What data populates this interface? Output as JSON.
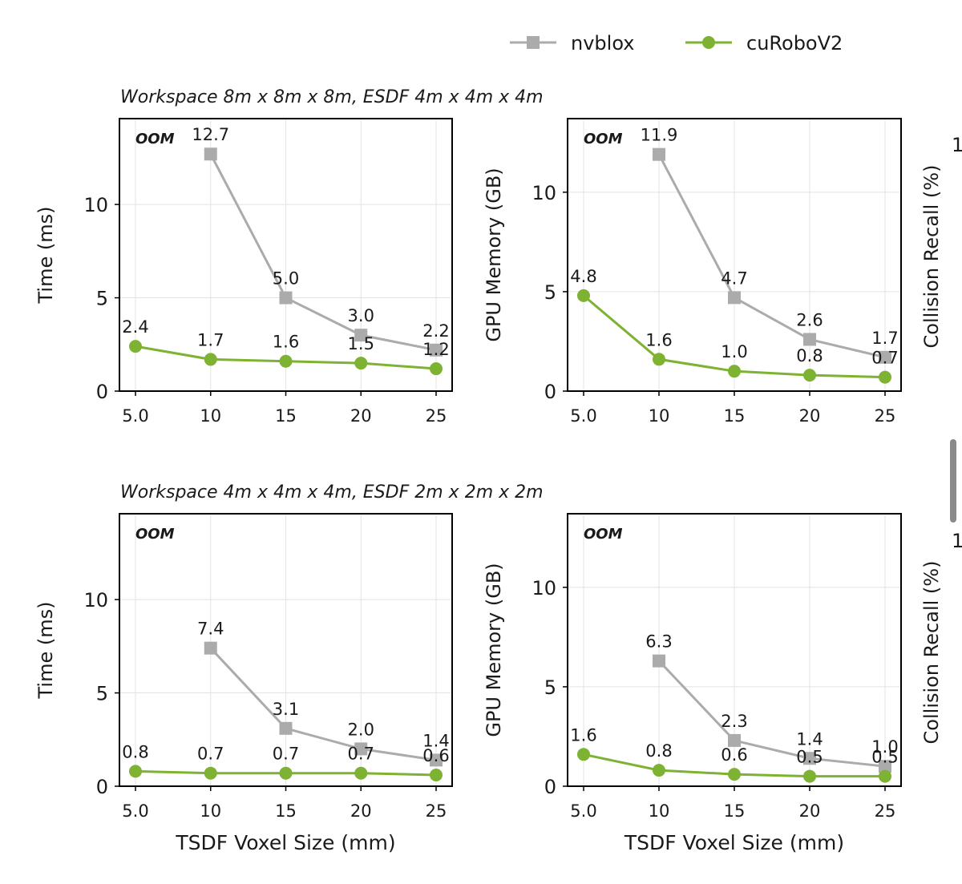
{
  "colors": {
    "nvblox": "#ababab",
    "cuRoboV2": "#7db232",
    "grid": "#e3e3e3",
    "oom": "#b0b0b0",
    "axis": "#000000",
    "scrollbar": "#8a8a8a"
  },
  "legend": {
    "items": [
      {
        "label": "nvblox",
        "marker": "square"
      },
      {
        "label": "cuRoboV2",
        "marker": "circle"
      }
    ],
    "placement": "top-right"
  },
  "rows": [
    {
      "title": "Workspace 8m x 8m x 8m, ESDF 4m x 4m x 4m"
    },
    {
      "title": "Workspace 4m x 4m x 4m, ESDF 2m x 2m x 2m"
    }
  ],
  "oom_label": "OOM",
  "right_column": {
    "ylabel": "Collision Recall (%)",
    "tick_fragment": "1"
  },
  "chart_data": [
    {
      "type": "line",
      "row": 0,
      "col": 0,
      "title": "Workspace 8m x 8m x 8m, ESDF 4m x 4m x 4m",
      "xlabel": "",
      "ylabel": "Time (ms)",
      "x": [
        5.0,
        10,
        15,
        20,
        25
      ],
      "xticks": [
        "5.0",
        "10",
        "15",
        "20",
        "25"
      ],
      "yticks": [
        "0",
        "5",
        "10"
      ],
      "ylim": [
        0,
        14.6
      ],
      "grid": true,
      "annotation": "OOM",
      "series": [
        {
          "name": "nvblox",
          "values": [
            null,
            12.7,
            5.0,
            3.0,
            2.2
          ],
          "labels": [
            null,
            "12.7",
            "5.0",
            "3.0",
            "2.2"
          ]
        },
        {
          "name": "cuRoboV2",
          "values": [
            2.4,
            1.7,
            1.6,
            1.5,
            1.2
          ],
          "labels": [
            "2.4",
            "1.7",
            "1.6",
            "1.5",
            "1.2"
          ]
        }
      ]
    },
    {
      "type": "line",
      "row": 0,
      "col": 1,
      "title": "",
      "xlabel": "",
      "ylabel": "GPU Memory (GB)",
      "x": [
        5.0,
        10,
        15,
        20,
        25
      ],
      "xticks": [
        "5.0",
        "10",
        "15",
        "20",
        "25"
      ],
      "yticks": [
        "0",
        "5",
        "10"
      ],
      "ylim": [
        0,
        13.7
      ],
      "grid": true,
      "annotation": "OOM",
      "series": [
        {
          "name": "nvblox",
          "values": [
            null,
            11.9,
            4.7,
            2.6,
            1.7
          ],
          "labels": [
            null,
            "11.9",
            "4.7",
            "2.6",
            "1.7"
          ]
        },
        {
          "name": "cuRoboV2",
          "values": [
            4.8,
            1.6,
            1.0,
            0.8,
            0.7
          ],
          "labels": [
            "4.8",
            "1.6",
            "1.0",
            "0.8",
            "0.7"
          ]
        }
      ]
    },
    {
      "type": "line",
      "row": 1,
      "col": 0,
      "title": "Workspace 4m x 4m x 4m, ESDF 2m x 2m x 2m",
      "xlabel": "TSDF Voxel Size (mm)",
      "ylabel": "Time (ms)",
      "x": [
        5.0,
        10,
        15,
        20,
        25
      ],
      "xticks": [
        "5.0",
        "10",
        "15",
        "20",
        "25"
      ],
      "yticks": [
        "0",
        "5",
        "10"
      ],
      "ylim": [
        0,
        14.6
      ],
      "grid": true,
      "annotation": "OOM",
      "series": [
        {
          "name": "nvblox",
          "values": [
            null,
            7.4,
            3.1,
            2.0,
            1.4
          ],
          "labels": [
            null,
            "7.4",
            "3.1",
            "2.0",
            "1.4"
          ]
        },
        {
          "name": "cuRoboV2",
          "values": [
            0.8,
            0.7,
            0.7,
            0.7,
            0.6
          ],
          "labels": [
            "0.8",
            "0.7",
            "0.7",
            "0.7",
            "0.6"
          ]
        }
      ]
    },
    {
      "type": "line",
      "row": 1,
      "col": 1,
      "title": "",
      "xlabel": "TSDF Voxel Size (mm)",
      "ylabel": "GPU Memory (GB)",
      "x": [
        5.0,
        10,
        15,
        20,
        25
      ],
      "xticks": [
        "5.0",
        "10",
        "15",
        "20",
        "25"
      ],
      "yticks": [
        "0",
        "5",
        "10"
      ],
      "ylim": [
        0,
        13.7
      ],
      "grid": true,
      "annotation": "OOM",
      "series": [
        {
          "name": "nvblox",
          "values": [
            null,
            6.3,
            2.3,
            1.4,
            1.0
          ],
          "labels": [
            null,
            "6.3",
            "2.3",
            "1.4",
            "1.0"
          ]
        },
        {
          "name": "cuRoboV2",
          "values": [
            1.6,
            0.8,
            0.6,
            0.5,
            0.5
          ],
          "labels": [
            "1.6",
            "0.8",
            "0.6",
            "0.5",
            "0.5"
          ]
        }
      ]
    }
  ]
}
